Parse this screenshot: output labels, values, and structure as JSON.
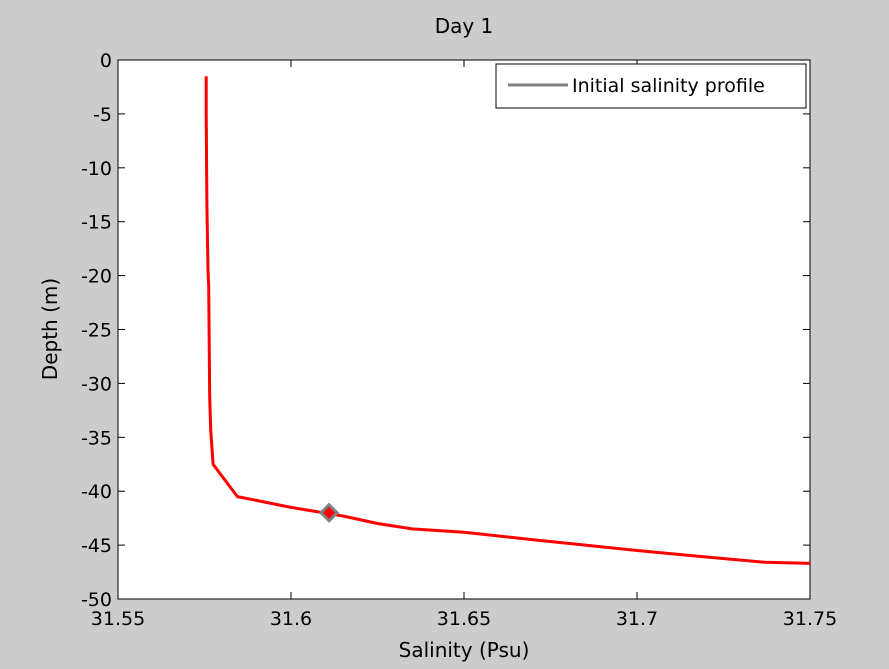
{
  "chart_data": {
    "type": "line",
    "title": "Day 1",
    "xlabel": "Salinity (Psu)",
    "ylabel": "Depth (m)",
    "xlim": [
      31.55,
      31.75
    ],
    "ylim": [
      -50,
      0
    ],
    "xticks": [
      31.55,
      31.6,
      31.65,
      31.7,
      31.75
    ],
    "xtick_labels": [
      "31.55",
      "31.6",
      "31.65",
      "31.7",
      "31.75"
    ],
    "yticks": [
      0,
      -5,
      -10,
      -15,
      -20,
      -25,
      -30,
      -35,
      -40,
      -45,
      -50
    ],
    "ytick_labels": [
      "0",
      "-5",
      "-10",
      "-15",
      "-20",
      "-25",
      "-30",
      "-35",
      "-40",
      "-45",
      "-50"
    ],
    "grid": false,
    "legend": {
      "placement": "top-right",
      "entries": [
        "Initial salinity profile"
      ]
    },
    "series": [
      {
        "color": "#ff0000",
        "style": "solid",
        "points": [
          [
            31.5755,
            -1.5
          ],
          [
            31.5755,
            -5.0
          ],
          [
            31.5756,
            -10.0
          ],
          [
            31.5757,
            -13.5
          ],
          [
            31.576,
            -19.5
          ],
          [
            31.5762,
            -21.0
          ],
          [
            31.5765,
            -31.3
          ],
          [
            31.5768,
            -34.3
          ],
          [
            31.5775,
            -37.5
          ],
          [
            31.5845,
            -40.5
          ],
          [
            31.6,
            -41.5
          ],
          [
            31.615,
            -42.3
          ],
          [
            31.625,
            -43.0
          ],
          [
            31.635,
            -43.5
          ],
          [
            31.65,
            -43.8
          ],
          [
            31.67,
            -44.5
          ],
          [
            31.7,
            -45.5
          ],
          [
            31.72,
            -46.1
          ],
          [
            31.737,
            -46.6
          ],
          [
            31.75,
            -46.7
          ]
        ]
      },
      {
        "name": "Initial salinity profile",
        "color": "#808080",
        "style": "solid",
        "points": []
      }
    ],
    "marker": {
      "x": 31.611,
      "y": -42.0,
      "shape": "diamond",
      "fill": "#ff0000",
      "edge": "#808080"
    }
  }
}
